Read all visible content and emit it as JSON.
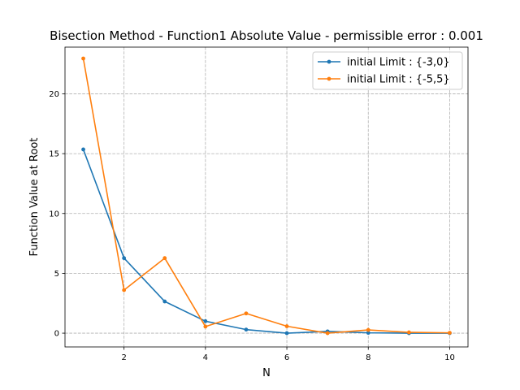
{
  "chart_data": {
    "type": "line",
    "title": "Bisection Method - Function1 Absolute Value - permissible error : 0.001",
    "xlabel": "N",
    "ylabel": "Function Value at Root",
    "xlim": [
      0.55,
      10.45
    ],
    "ylim": [
      -1.15,
      23.9
    ],
    "x_ticks": [
      2,
      4,
      6,
      8,
      10
    ],
    "y_ticks": [
      0,
      5,
      10,
      15,
      20
    ],
    "grid": true,
    "legend_position": "top-right",
    "series": [
      {
        "name": "initial Limit : {-3,0}",
        "color": "#1f77b4",
        "x": [
          1,
          2,
          3,
          4,
          5,
          6,
          7,
          8,
          9,
          10
        ],
        "y": [
          15.35,
          6.27,
          2.65,
          1.0,
          0.3,
          0.0,
          0.15,
          0.03,
          0.0,
          0.0
        ]
      },
      {
        "name": "initial Limit : {-5,5}",
        "color": "#ff7f0e",
        "x": [
          1,
          2,
          3,
          4,
          5,
          6,
          7,
          8,
          9,
          10
        ],
        "y": [
          22.95,
          3.6,
          6.27,
          0.55,
          1.65,
          0.58,
          0.0,
          0.27,
          0.07,
          0.03
        ]
      }
    ]
  }
}
